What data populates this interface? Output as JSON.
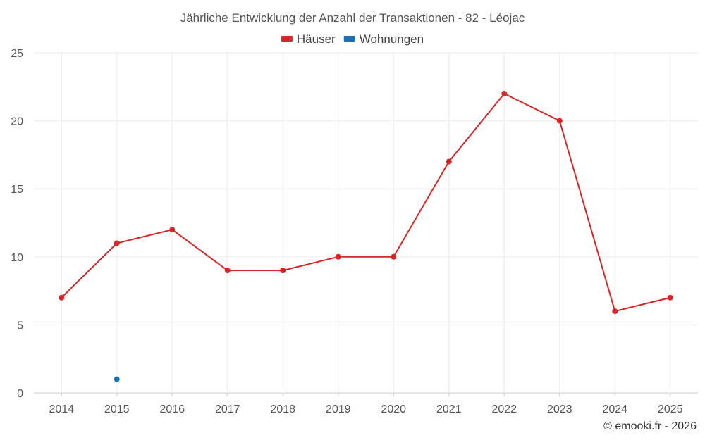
{
  "chart_data": {
    "type": "line",
    "title": "Jährliche Entwicklung der Anzahl der Transaktionen - 82 - Léojac",
    "categories": [
      "2014",
      "2015",
      "2016",
      "2017",
      "2018",
      "2019",
      "2020",
      "2021",
      "2022",
      "2023",
      "2024",
      "2025"
    ],
    "ylim": [
      0,
      25
    ],
    "yticks": [
      0,
      5,
      10,
      15,
      20,
      25
    ],
    "grid": true,
    "legend_position": "top-center",
    "xlabel": "",
    "ylabel": "",
    "series": [
      {
        "name": "Häuser",
        "color": "#d62728",
        "values": [
          7,
          11,
          12,
          9,
          9,
          10,
          10,
          17,
          22,
          20,
          6,
          7
        ]
      },
      {
        "name": "Wohnungen",
        "color": "#1f6fb0",
        "values": [
          null,
          1,
          null,
          null,
          null,
          null,
          null,
          null,
          null,
          null,
          null,
          null
        ]
      }
    ]
  },
  "footer": "© emooki.fr - 2026"
}
